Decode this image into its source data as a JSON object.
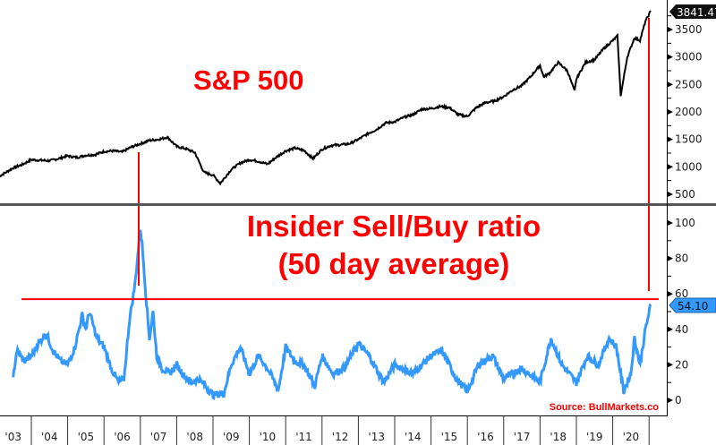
{
  "chart_data": [
    {
      "type": "line",
      "panel": "top",
      "title": "S&P 500",
      "ylim": [
        400,
        4000
      ],
      "y_ticks": [
        500,
        1000,
        1500,
        2000,
        2500,
        3000,
        3500
      ],
      "last_value_label": "3841.47",
      "series": [
        {
          "name": "S&P 500",
          "color": "#000000",
          "x": [
            2003.1,
            2003.25,
            2003.5,
            2003.75,
            2004,
            2004.25,
            2004.5,
            2004.75,
            2005,
            2005.25,
            2005.5,
            2005.75,
            2006,
            2006.25,
            2006.5,
            2006.75,
            2007,
            2007.25,
            2007.5,
            2007.75,
            2008,
            2008.25,
            2008.5,
            2008.75,
            2009,
            2009.2,
            2009.5,
            2009.75,
            2010,
            2010.25,
            2010.5,
            2010.75,
            2011,
            2011.25,
            2011.5,
            2011.75,
            2012,
            2012.25,
            2012.5,
            2012.75,
            2013,
            2013.25,
            2013.5,
            2013.75,
            2014,
            2014.25,
            2014.5,
            2014.75,
            2015,
            2015.25,
            2015.5,
            2015.75,
            2016,
            2016.25,
            2016.5,
            2016.75,
            2017,
            2017.25,
            2017.5,
            2017.75,
            2018,
            2018.1,
            2018.25,
            2018.5,
            2018.75,
            2018.95,
            2019,
            2019.25,
            2019.5,
            2019.75,
            2020,
            2020.13,
            2020.22,
            2020.4,
            2020.6,
            2020.75,
            2020.9,
            2021.05
          ],
          "y": [
            820,
            880,
            980,
            1040,
            1130,
            1120,
            1110,
            1150,
            1200,
            1170,
            1210,
            1220,
            1280,
            1290,
            1270,
            1360,
            1420,
            1480,
            1500,
            1540,
            1370,
            1330,
            1260,
            900,
            850,
            700,
            950,
            1070,
            1130,
            1100,
            1050,
            1180,
            1290,
            1340,
            1300,
            1150,
            1320,
            1390,
            1400,
            1420,
            1500,
            1600,
            1680,
            1800,
            1820,
            1900,
            1950,
            2050,
            2060,
            2100,
            2080,
            1950,
            1920,
            2080,
            2170,
            2200,
            2280,
            2400,
            2480,
            2650,
            2850,
            2640,
            2700,
            2900,
            2750,
            2380,
            2600,
            2900,
            2950,
            3150,
            3300,
            3380,
            2300,
            3000,
            3350,
            3300,
            3650,
            3841.47
          ]
        }
      ]
    },
    {
      "type": "line",
      "panel": "bottom",
      "title": "Insider Sell/Buy ratio",
      "subtitle": "(50 day average)",
      "ylim": [
        -5,
        110
      ],
      "y_ticks": [
        0,
        20,
        40,
        60,
        80,
        100
      ],
      "last_value_label": "54.10",
      "reference_line": 57,
      "series": [
        {
          "name": "Insider Sell/Buy ratio",
          "color": "#3399ff",
          "x": [
            2003.5,
            2003.6,
            2003.8,
            2004,
            2004.2,
            2004.4,
            2004.6,
            2004.8,
            2005,
            2005.2,
            2005.4,
            2005.5,
            2005.6,
            2005.8,
            2006,
            2006.2,
            2006.4,
            2006.55,
            2006.7,
            2006.85,
            2007,
            2007.05,
            2007.15,
            2007.25,
            2007.35,
            2007.45,
            2007.6,
            2007.8,
            2008,
            2008.2,
            2008.4,
            2008.6,
            2008.8,
            2009,
            2009.3,
            2009.5,
            2009.75,
            2010,
            2010.25,
            2010.5,
            2010.8,
            2011,
            2011.25,
            2011.5,
            2011.8,
            2012,
            2012.3,
            2012.6,
            2013,
            2013.3,
            2013.7,
            2014,
            2014.5,
            2015,
            2015.3,
            2015.7,
            2016,
            2016.3,
            2016.7,
            2017,
            2017.5,
            2018,
            2018.3,
            2018.6,
            2019,
            2019.3,
            2019.6,
            2019.9,
            2020.1,
            2020.3,
            2020.5,
            2020.6,
            2020.75,
            2020.9,
            2021.05
          ],
          "y": [
            13,
            28,
            22,
            25,
            32,
            38,
            28,
            22,
            20,
            30,
            48,
            40,
            50,
            35,
            30,
            18,
            10,
            12,
            45,
            65,
            97,
            88,
            60,
            35,
            50,
            25,
            18,
            15,
            20,
            14,
            10,
            12,
            8,
            3,
            4,
            20,
            30,
            15,
            25,
            18,
            6,
            30,
            22,
            20,
            8,
            25,
            15,
            18,
            32,
            25,
            10,
            20,
            15,
            25,
            28,
            12,
            5,
            20,
            25,
            12,
            18,
            10,
            35,
            20,
            10,
            25,
            20,
            35,
            30,
            5,
            15,
            35,
            20,
            40,
            54.1
          ]
        }
      ]
    }
  ],
  "x_ticks": [
    "'03",
    "'04",
    "'05",
    "'06",
    "'07",
    "'08",
    "'09",
    "'10",
    "'11",
    "'12",
    "'13",
    "'14",
    "'15",
    "'16",
    "'17",
    "'18",
    "'19",
    "'20"
  ],
  "source": "Source: BullMarkets.co",
  "colors": {
    "annotation": "#ff0000",
    "sp500": "#000000",
    "insider": "#3399ff"
  }
}
